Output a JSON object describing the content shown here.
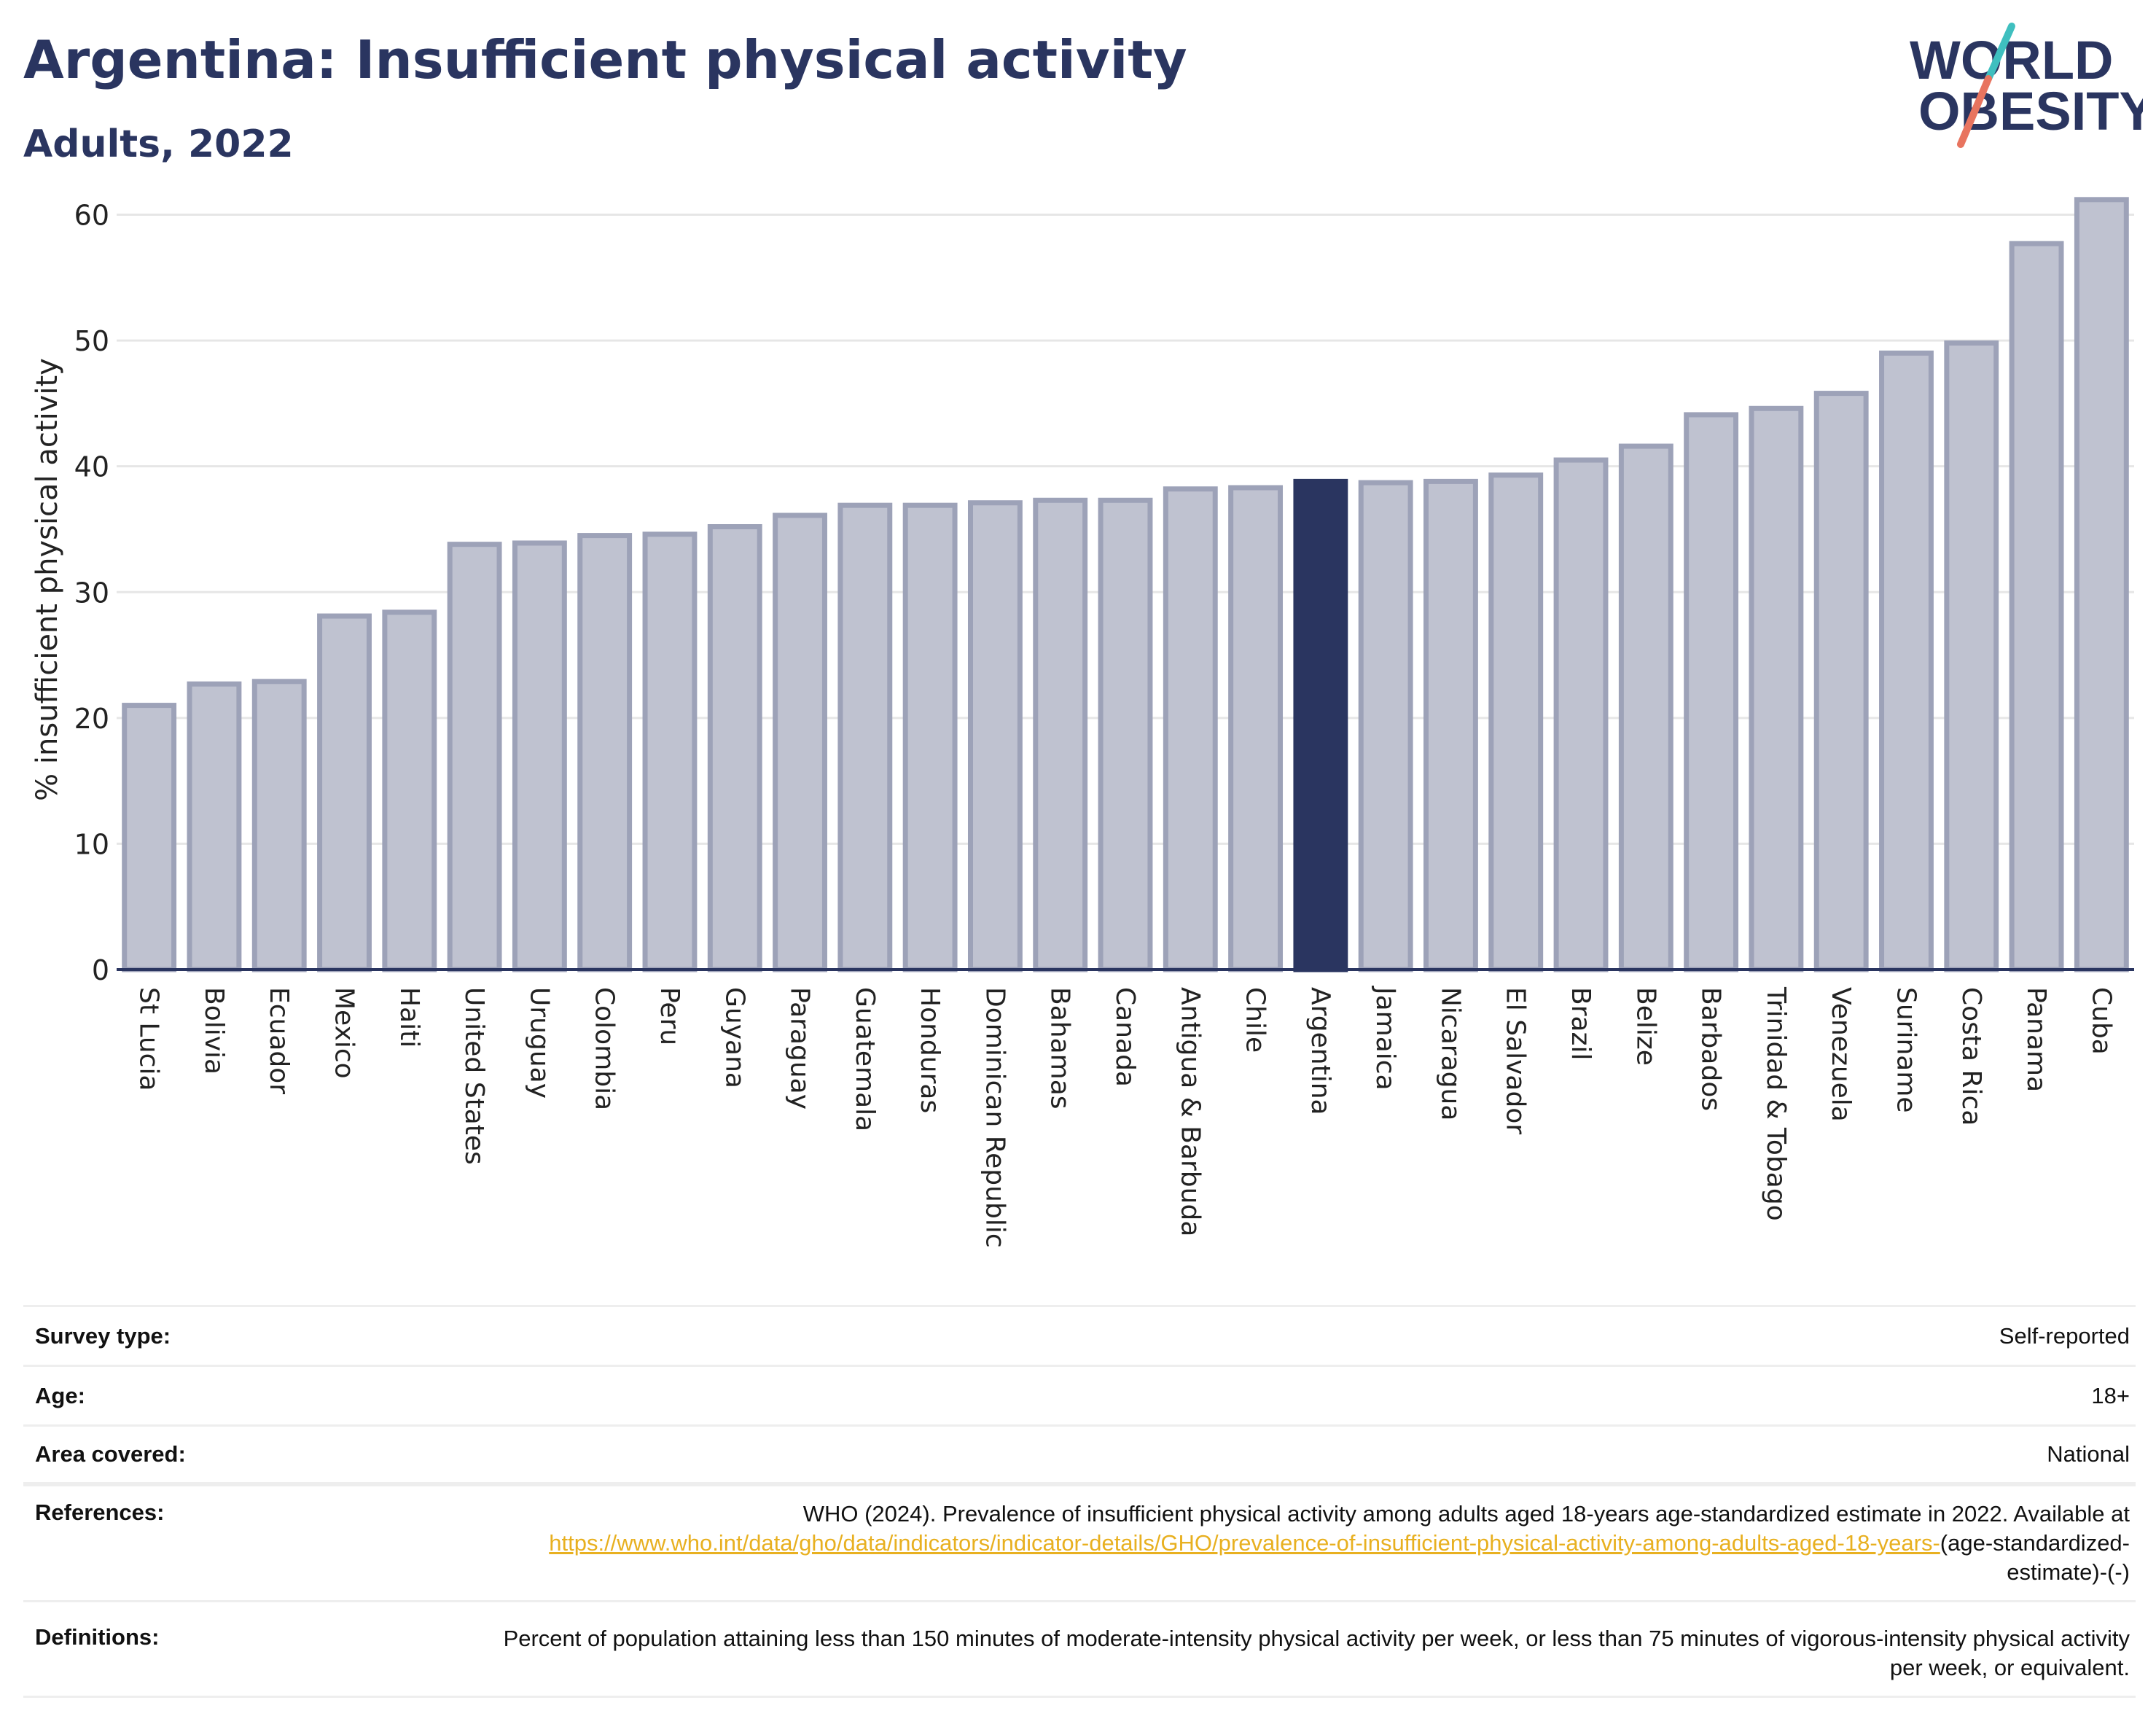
{
  "header": {
    "title": "Argentina: Insufficient physical activity",
    "subtitle": "Adults, 2022"
  },
  "logo": {
    "line1": "WORLD",
    "line2": "OBESITY",
    "colors": {
      "text": "#2a3560",
      "slash_teal": "#3fbfbf",
      "slash_coral": "#e8745f"
    }
  },
  "colors": {
    "bar_default": "#bfc2d0",
    "bar_border": "#9da2b8",
    "bar_highlight": "#2a3560",
    "grid": "#e6e6e6",
    "axis": "#2a3560"
  },
  "chart_data": {
    "type": "bar",
    "ylabel": "% insufficient physical activity",
    "ylim": [
      0,
      62
    ],
    "yticks": [
      0,
      10,
      20,
      30,
      40,
      50,
      60
    ],
    "grid": true,
    "highlight": "Argentina",
    "categories": [
      "St Lucia",
      "Bolivia",
      "Ecuador",
      "Mexico",
      "Haiti",
      "United States",
      "Uruguay",
      "Colombia",
      "Peru",
      "Guyana",
      "Paraguay",
      "Guatemala",
      "Honduras",
      "Dominican Republic",
      "Bahamas",
      "Canada",
      "Antigua & Barbuda",
      "Chile",
      "Argentina",
      "Jamaica",
      "Nicaragua",
      "El Salvador",
      "Brazil",
      "Belize",
      "Barbados",
      "Trinidad & Tobago",
      "Venezuela",
      "Suriname",
      "Costa Rica",
      "Panama",
      "Cuba"
    ],
    "values": [
      21.0,
      22.7,
      22.9,
      28.1,
      28.4,
      33.8,
      33.9,
      34.5,
      34.6,
      35.2,
      36.1,
      36.9,
      36.9,
      37.1,
      37.3,
      37.3,
      38.2,
      38.3,
      38.8,
      38.7,
      38.8,
      39.3,
      40.5,
      41.6,
      44.1,
      44.6,
      45.8,
      49.0,
      49.8,
      57.7,
      61.2
    ]
  },
  "details": [
    {
      "label": "Survey type:",
      "value": "Self-reported"
    },
    {
      "label": "Age:",
      "value": "18+"
    },
    {
      "label": "Area covered:",
      "value": "National"
    }
  ],
  "references": {
    "label": "References:",
    "text": "WHO (2024). Prevalence of insufficient physical activity among adults aged 18-years age-standardized estimate in 2022. Available at",
    "link": "https://www.who.int/data/gho/data/indicators/indicator-details/GHO/prevalence-of-insufficient-physical-activity-among-adults-aged-18-years-",
    "suffix": "(age-standardized-estimate)-(-)"
  },
  "definitions": {
    "label": "Definitions:",
    "text": "Percent of population attaining less than 150 minutes of moderate-intensity physical activity per week, or less than 75 minutes of vigorous-intensity physical activity per week, or equivalent."
  }
}
